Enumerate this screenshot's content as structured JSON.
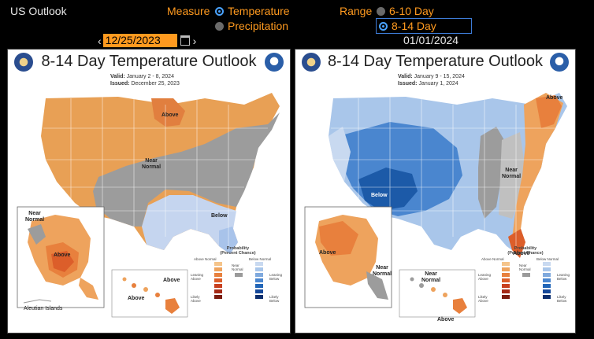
{
  "app": {
    "title": "US Outlook"
  },
  "measure": {
    "label": "Measure",
    "options": [
      {
        "label": "Temperature",
        "selected": true
      },
      {
        "label": "Precipitation",
        "selected": false
      }
    ]
  },
  "range": {
    "label": "Range",
    "options": [
      {
        "label": "6-10 Day",
        "selected": false
      },
      {
        "label": "8-14 Day",
        "selected": true
      }
    ]
  },
  "date_nav": {
    "prev": "‹",
    "next": "›",
    "left_date": "12/25/2023",
    "right_date": "01/01/2024"
  },
  "left_map": {
    "title": "8-14 Day Temperature Outlook",
    "valid_label": "Valid:",
    "valid": "January 2 - 8, 2024",
    "issued_label": "Issued:",
    "issued": "December 25, 2023",
    "labels": {
      "above": "Above",
      "near_normal": "Near\nNormal",
      "below": "Below",
      "ak_near_normal": "Near\nNormal",
      "ak_above": "Above",
      "aleutian": "Aleutian Islands",
      "hi_above_1": "Above",
      "hi_above_2": "Above"
    }
  },
  "right_map": {
    "title": "8-14 Day Temperature Outlook",
    "valid_label": "Valid:",
    "valid": "January 9 - 15, 2024",
    "issued_label": "Issued:",
    "issued": "January 1, 2024",
    "labels": {
      "above_ne": "Above",
      "near_normal": "Near\nNormal",
      "below": "Below",
      "above_fl": "Above",
      "ak_above": "Above",
      "ak_near_normal": "Near\nNormal",
      "hi_near_normal": "Near\nNormal",
      "hi_above": "Above"
    }
  },
  "legend": {
    "title": "Probability\n(Percent Chance)",
    "above_header": "Above Normal",
    "below_header": "Below Normal",
    "leaning_above": "Leaning\nAbove",
    "likely_above": "Likely\nAbove",
    "near_normal": "Near\nNormal",
    "leaning_below": "Leaning\nBelow",
    "likely_below": "Likely\nBelow",
    "above_colors": [
      "#f5c48a",
      "#eea35d",
      "#e8803d",
      "#dc5e2a",
      "#c8401f",
      "#a52a17",
      "#7a1c10"
    ],
    "below_colors": [
      "#c8d9f0",
      "#a9c6ea",
      "#7fa9dd",
      "#4a86cf",
      "#2266b8",
      "#15489a",
      "#0c2e6e"
    ],
    "near_color": "#9a9a9a"
  }
}
